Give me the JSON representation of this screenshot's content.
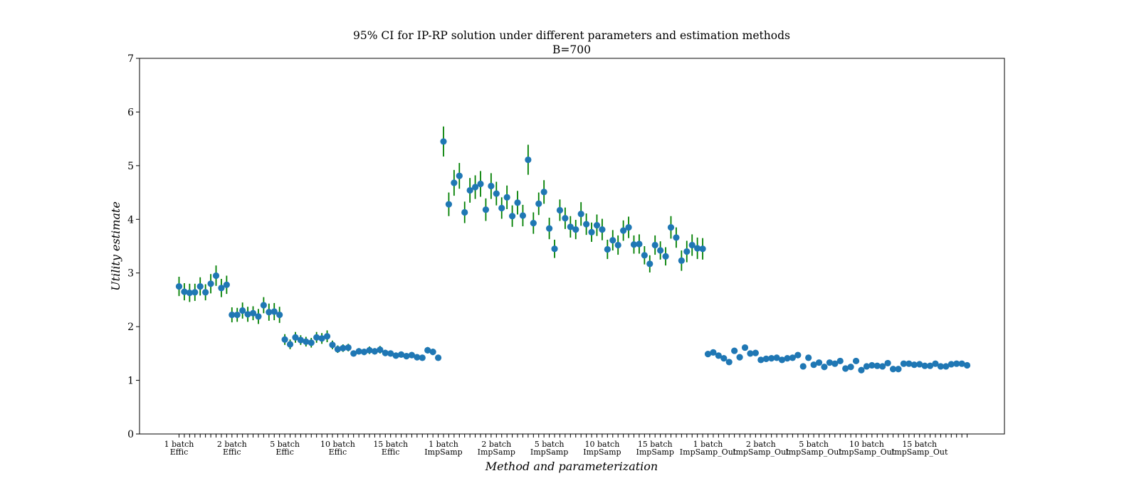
{
  "chart_data": {
    "type": "scatter",
    "title": "95% CI for IP-RP solution under different parameters and estimation methods",
    "subtitle": "B=700",
    "xlabel": "Method and parameterization",
    "ylabel": "Utility estimate",
    "ylim": [
      0,
      7
    ],
    "y_ticks": [
      0,
      1,
      2,
      3,
      4,
      5,
      6,
      7
    ],
    "grid": false,
    "legend": "none",
    "colors": {
      "point": "#1f77b4",
      "error_bar": "#007f00",
      "axis": "#000000"
    },
    "groups": [
      {
        "label_line1": "1 batch",
        "label_line2": "Effic",
        "values": [
          2.75,
          2.65,
          2.63,
          2.64,
          2.75,
          2.64,
          2.8,
          2.95,
          2.72,
          2.78
        ],
        "errors": [
          0.18,
          0.16,
          0.17,
          0.16,
          0.17,
          0.15,
          0.18,
          0.19,
          0.17,
          0.17
        ]
      },
      {
        "label_line1": "2 batch",
        "label_line2": "Effic",
        "values": [
          2.22,
          2.22,
          2.3,
          2.23,
          2.25,
          2.19,
          2.4,
          2.27,
          2.28,
          2.22
        ],
        "errors": [
          0.14,
          0.13,
          0.15,
          0.14,
          0.13,
          0.14,
          0.15,
          0.16,
          0.16,
          0.15
        ]
      },
      {
        "label_line1": "5 batch",
        "label_line2": "Effic",
        "values": [
          1.76,
          1.67,
          1.8,
          1.75,
          1.72,
          1.7,
          1.8,
          1.78,
          1.82,
          1.66
        ],
        "errors": [
          0.1,
          0.09,
          0.1,
          0.09,
          0.09,
          0.09,
          0.1,
          0.1,
          0.11,
          0.08
        ]
      },
      {
        "label_line1": "10 batch",
        "label_line2": "Effic",
        "values": [
          1.58,
          1.6,
          1.61,
          1.5,
          1.54,
          1.53,
          1.56,
          1.54,
          1.57,
          1.51
        ],
        "errors": [
          0.07,
          0.07,
          0.07,
          0.05,
          0.06,
          0.06,
          0.07,
          0.06,
          0.07,
          0.06
        ]
      },
      {
        "label_line1": "15 batch",
        "label_line2": "Effic",
        "values": [
          1.5,
          1.46,
          1.48,
          1.45,
          1.47,
          1.43,
          1.42,
          1.56,
          1.53,
          1.42
        ],
        "errors": [
          0.05,
          0.05,
          0.04,
          0.04,
          0.05,
          0.04,
          0.04,
          0.06,
          0.06,
          0.04
        ]
      },
      {
        "label_line1": "1 batch",
        "label_line2": "ImpSamp",
        "values": [
          5.45,
          4.28,
          4.68,
          4.81,
          4.13,
          4.54,
          4.6,
          4.66,
          4.18,
          4.62
        ],
        "errors": [
          0.28,
          0.22,
          0.24,
          0.24,
          0.2,
          0.23,
          0.22,
          0.24,
          0.21,
          0.24
        ]
      },
      {
        "label_line1": "2 batch",
        "label_line2": "ImpSamp",
        "values": [
          4.48,
          4.21,
          4.41,
          4.06,
          4.31,
          4.07,
          5.11,
          3.93,
          4.29,
          4.51
        ],
        "errors": [
          0.22,
          0.2,
          0.22,
          0.2,
          0.22,
          0.2,
          0.28,
          0.2,
          0.21,
          0.22
        ]
      },
      {
        "label_line1": "5 batch",
        "label_line2": "ImpSamp",
        "values": [
          3.83,
          3.45,
          4.17,
          4.02,
          3.86,
          3.81,
          4.1,
          3.91,
          3.76,
          3.89
        ],
        "errors": [
          0.2,
          0.17,
          0.2,
          0.2,
          0.2,
          0.18,
          0.22,
          0.2,
          0.18,
          0.2
        ]
      },
      {
        "label_line1": "10 batch",
        "label_line2": "ImpSamp",
        "values": [
          3.81,
          3.44,
          3.61,
          3.52,
          3.79,
          3.85,
          3.53,
          3.54,
          3.33,
          3.17
        ],
        "errors": [
          0.2,
          0.18,
          0.19,
          0.18,
          0.19,
          0.2,
          0.17,
          0.18,
          0.17,
          0.16
        ]
      },
      {
        "label_line1": "15 batch",
        "label_line2": "ImpSamp",
        "values": [
          3.52,
          3.42,
          3.31,
          3.85,
          3.66,
          3.23,
          3.4,
          3.52,
          3.46,
          3.45
        ],
        "errors": [
          0.18,
          0.17,
          0.17,
          0.21,
          0.19,
          0.19,
          0.2,
          0.2,
          0.2,
          0.2
        ]
      },
      {
        "label_line1": "1 batch",
        "label_line2": "ImpSamp_Out",
        "values": [
          1.49,
          1.52,
          1.46,
          1.41,
          1.34,
          1.55,
          1.43,
          1.61,
          1.5,
          1.51
        ],
        "errors": [
          0,
          0,
          0,
          0,
          0,
          0,
          0,
          0,
          0,
          0
        ]
      },
      {
        "label_line1": "2 batch",
        "label_line2": "ImpSamp_Out",
        "values": [
          1.38,
          1.4,
          1.41,
          1.42,
          1.38,
          1.41,
          1.42,
          1.47,
          1.26,
          1.42
        ],
        "errors": [
          0,
          0,
          0,
          0,
          0,
          0,
          0,
          0,
          0,
          0
        ]
      },
      {
        "label_line1": "5 batch",
        "label_line2": "ImpSamp_Out",
        "values": [
          1.29,
          1.33,
          1.25,
          1.33,
          1.31,
          1.36,
          1.22,
          1.25,
          1.36,
          1.19
        ],
        "errors": [
          0,
          0,
          0,
          0,
          0,
          0,
          0,
          0,
          0,
          0
        ]
      },
      {
        "label_line1": "10 batch",
        "label_line2": "ImpSamp_Out",
        "values": [
          1.26,
          1.28,
          1.27,
          1.26,
          1.32,
          1.21,
          1.21,
          1.31,
          1.31,
          1.29
        ],
        "errors": [
          0,
          0,
          0,
          0,
          0,
          0,
          0,
          0,
          0,
          0
        ]
      },
      {
        "label_line1": "15 batch",
        "label_line2": "ImpSamp_Out",
        "values": [
          1.3,
          1.27,
          1.27,
          1.31,
          1.26,
          1.26,
          1.3,
          1.31,
          1.31,
          1.28
        ],
        "errors": [
          0,
          0,
          0,
          0,
          0,
          0,
          0,
          0,
          0,
          0
        ]
      }
    ]
  }
}
